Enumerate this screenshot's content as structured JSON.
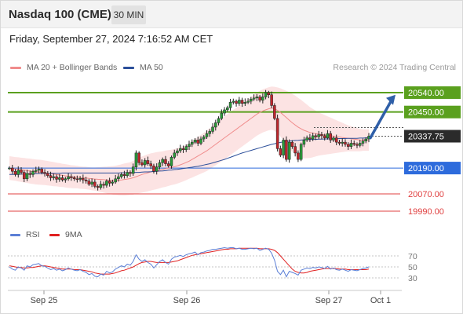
{
  "header": {
    "title": "Nasdaq 100 (CME)",
    "timeframe": "30 MIN"
  },
  "datetime": "Friday, September 27, 2024 7:16:52 AM CET",
  "legend": [
    {
      "label": "MA 20 + Bollinger Bands",
      "color": "#f08c8c"
    },
    {
      "label": "MA 50",
      "color": "#2c4f9a"
    }
  ],
  "credit": "Research © 2024 Trading Central",
  "rsi_legend": [
    {
      "label": "RSI",
      "color": "#5b7fd6"
    },
    {
      "label": "9MA",
      "color": "#e02020"
    }
  ],
  "chart_data": {
    "type": "candlestick",
    "x_ticks": [
      "Sep 25",
      "Sep 26",
      "Sep 27",
      "Oct 1"
    ],
    "price_range": [
      19950,
      20620
    ],
    "current_price": {
      "value": 20337.75,
      "label": "20337.75",
      "color": "#2b2b2b"
    },
    "levels": [
      {
        "value": 20540,
        "label": "20540.00",
        "color": "#5aa01e",
        "style": "solid",
        "badge": "fill"
      },
      {
        "value": 20450,
        "label": "20450.00",
        "color": "#5aa01e",
        "style": "solid",
        "badge": "fill"
      },
      {
        "value": 20190,
        "label": "20190.00",
        "color": "#2d6bdc",
        "style": "solid",
        "badge": "fill"
      },
      {
        "value": 20070,
        "label": "20070.00",
        "color": "#e04040",
        "style": "solid",
        "badge": "text"
      },
      {
        "value": 19990,
        "label": "19990.00",
        "color": "#e04040",
        "style": "solid",
        "badge": "text"
      }
    ],
    "forecast_arrow": {
      "from": 20330,
      "to": 20530,
      "color": "#2f5fa8"
    },
    "closes": [
      20190,
      20175,
      20160,
      20180,
      20170,
      20140,
      20165,
      20160,
      20175,
      20180,
      20185,
      20170,
      20165,
      20155,
      20145,
      20150,
      20138,
      20145,
      20135,
      20140,
      20150,
      20145,
      20140,
      20138,
      20142,
      20135,
      20130,
      20115,
      20125,
      20105,
      20100,
      20115,
      20110,
      20130,
      20120,
      20125,
      20140,
      20150,
      20160,
      20155,
      20170,
      20165,
      20195,
      20260,
      20215,
      20205,
      20225,
      20210,
      20200,
      20175,
      20195,
      20215,
      20230,
      20210,
      20200,
      20240,
      20260,
      20270,
      20280,
      20275,
      20290,
      20300,
      20310,
      20320,
      20305,
      20325,
      20335,
      20350,
      20360,
      20380,
      20400,
      20420,
      20445,
      20460,
      20470,
      20495,
      20500,
      20490,
      20505,
      20490,
      20495,
      20500,
      20510,
      20515,
      20520,
      20505,
      20520,
      20540,
      20530,
      20480,
      20420,
      20280,
      20250,
      20320,
      20230,
      20310,
      20290,
      20260,
      20230,
      20300,
      20320,
      20330,
      20325,
      20340,
      20335,
      20345,
      20340,
      20330,
      20350,
      20320,
      20330,
      20310,
      20305,
      20310,
      20300,
      20290,
      20305,
      20300,
      20295,
      20305,
      20315,
      20325,
      20338
    ],
    "ma50": [
      20160,
      20160,
      20161,
      20161,
      20162,
      20162,
      20163,
      20163,
      20164,
      20164,
      20165,
      20165,
      20165,
      20165,
      20166,
      20166,
      20166,
      20166,
      20167,
      20167,
      20167,
      20167,
      20167,
      20167,
      20167,
      20167,
      20167,
      20167,
      20167,
      20167,
      20167,
      20167,
      20167,
      20167,
      20167,
      20167,
      20167,
      20167,
      20168,
      20168,
      20168,
      20168,
      20169,
      20170,
      20170,
      20171,
      20172,
      20172,
      20173,
      20174,
      20175,
      20176,
      20177,
      20178,
      20180,
      20181,
      20183,
      20184,
      20186,
      20188,
      20190,
      20192,
      20194,
      20196,
      20198,
      20201,
      20204,
      20207,
      20210,
      20214,
      20218,
      20222,
      20226,
      20230,
      20235,
      20240,
      20245,
      20250,
      20255,
      20260,
      20264,
      20268,
      20272,
      20276,
      20280,
      20284,
      20288,
      20292,
      20296,
      20300,
      20303,
      20306,
      20309,
      20311,
      20313,
      20315,
      20317,
      20318,
      20319,
      20320,
      20321,
      20322,
      20322,
      20323,
      20323,
      20324,
      20324,
      20325,
      20325,
      20326,
      20326,
      20326,
      20327,
      20327,
      20327,
      20328,
      20328,
      20328,
      20328,
      20329,
      20329,
      20330,
      20330
    ],
    "ma20": [
      20190,
      20188,
      20186,
      20184,
      20182,
      20180,
      20178,
      20176,
      20174,
      20172,
      20171,
      20170,
      20168,
      20166,
      20164,
      20162,
      20160,
      20158,
      20156,
      20154,
      20152,
      20150,
      20149,
      20148,
      20146,
      20145,
      20144,
      20142,
      20140,
      20139,
      20138,
      20137,
      20136,
      20135,
      20134,
      20133,
      20133,
      20134,
      20135,
      20137,
      20139,
      20141,
      20145,
      20150,
      20155,
      20160,
      20164,
      20168,
      20172,
      20175,
      20178,
      20181,
      20184,
      20187,
      20190,
      20193,
      20196,
      20200,
      20205,
      20210,
      20216,
      20222,
      20230,
      20238,
      20246,
      20254,
      20262,
      20270,
      20280,
      20290,
      20300,
      20310,
      20320,
      20330,
      20340,
      20350,
      20360,
      20370,
      20380,
      20390,
      20400,
      20410,
      20420,
      20430,
      20440,
      20448,
      20455,
      20460,
      20465,
      20468,
      20465,
      20458,
      20448,
      20436,
      20424,
      20412,
      20400,
      20390,
      20380,
      20372,
      20365,
      20360,
      20355,
      20352,
      20350,
      20348,
      20346,
      20344,
      20342,
      20340,
      20338,
      20336,
      20334,
      20332,
      20330,
      20328,
      20326,
      20324,
      20322,
      20320,
      20320,
      20320,
      20320
    ],
    "bb_half_width": [
      55,
      55,
      55,
      56,
      56,
      57,
      57,
      58,
      58,
      58,
      58,
      58,
      57,
      57,
      56,
      56,
      55,
      55,
      54,
      54,
      54,
      53,
      53,
      52,
      52,
      52,
      52,
      52,
      53,
      54,
      56,
      58,
      60,
      62,
      64,
      66,
      68,
      70,
      72,
      74,
      75,
      76,
      78,
      80,
      82,
      84,
      85,
      86,
      86,
      86,
      86,
      85,
      84,
      84,
      83,
      82,
      82,
      82,
      82,
      82,
      82,
      82,
      84,
      86,
      88,
      90,
      92,
      94,
      95,
      96,
      97,
      98,
      99,
      100,
      100,
      100,
      100,
      100,
      100,
      100,
      100,
      100,
      100,
      100,
      100,
      100,
      100,
      100,
      100,
      100,
      102,
      106,
      112,
      118,
      124,
      130,
      134,
      136,
      136,
      134,
      130,
      124,
      118,
      112,
      106,
      100,
      96,
      92,
      88,
      84,
      80,
      76,
      72,
      68,
      64,
      60,
      58,
      56,
      54,
      52,
      50,
      50,
      50
    ],
    "rsi": [
      50,
      46,
      44,
      50,
      48,
      44,
      52,
      50,
      54,
      55,
      56,
      52,
      51,
      48,
      45,
      47,
      44,
      46,
      43,
      45,
      48,
      46,
      44,
      43,
      45,
      42,
      40,
      36,
      38,
      33,
      32,
      37,
      35,
      42,
      39,
      41,
      46,
      49,
      52,
      50,
      55,
      53,
      60,
      72,
      64,
      60,
      63,
      58,
      55,
      48,
      54,
      60,
      63,
      58,
      55,
      64,
      68,
      69,
      71,
      69,
      72,
      74,
      75,
      77,
      72,
      76,
      77,
      79,
      80,
      82,
      82,
      83,
      84,
      85,
      84,
      85,
      85,
      83,
      84,
      82,
      82,
      83,
      84,
      83,
      84,
      80,
      82,
      84,
      82,
      75,
      62,
      42,
      36,
      44,
      32,
      42,
      40,
      38,
      35,
      44,
      46,
      48,
      47,
      49,
      48,
      50,
      49,
      47,
      51,
      46,
      48,
      45,
      44,
      46,
      44,
      42,
      45,
      44,
      43,
      45,
      47,
      48,
      50
    ],
    "rsi_ma9": [
      52,
      51,
      50,
      49,
      49,
      48,
      48,
      49,
      49,
      50,
      51,
      52,
      52,
      51,
      50,
      49,
      48,
      47,
      46,
      46,
      46,
      46,
      45,
      45,
      45,
      44,
      43,
      42,
      41,
      39,
      38,
      37,
      37,
      37,
      37,
      38,
      39,
      41,
      43,
      44,
      46,
      48,
      50,
      53,
      56,
      58,
      59,
      60,
      60,
      59,
      58,
      58,
      58,
      58,
      58,
      59,
      60,
      61,
      63,
      65,
      67,
      69,
      71,
      72,
      73,
      74,
      75,
      76,
      77,
      78,
      79,
      80,
      81,
      82,
      82,
      83,
      83,
      83,
      84,
      84,
      84,
      84,
      84,
      84,
      84,
      83,
      83,
      83,
      83,
      82,
      80,
      76,
      70,
      64,
      58,
      52,
      46,
      42,
      40,
      39,
      39,
      40,
      42,
      43,
      44,
      45,
      46,
      47,
      47,
      47,
      47,
      47,
      46,
      46,
      46,
      45,
      45,
      45,
      45,
      45,
      45,
      45,
      46
    ],
    "rsi_levels": [
      70,
      50,
      30
    ],
    "rsi_range": [
      10,
      90
    ]
  }
}
